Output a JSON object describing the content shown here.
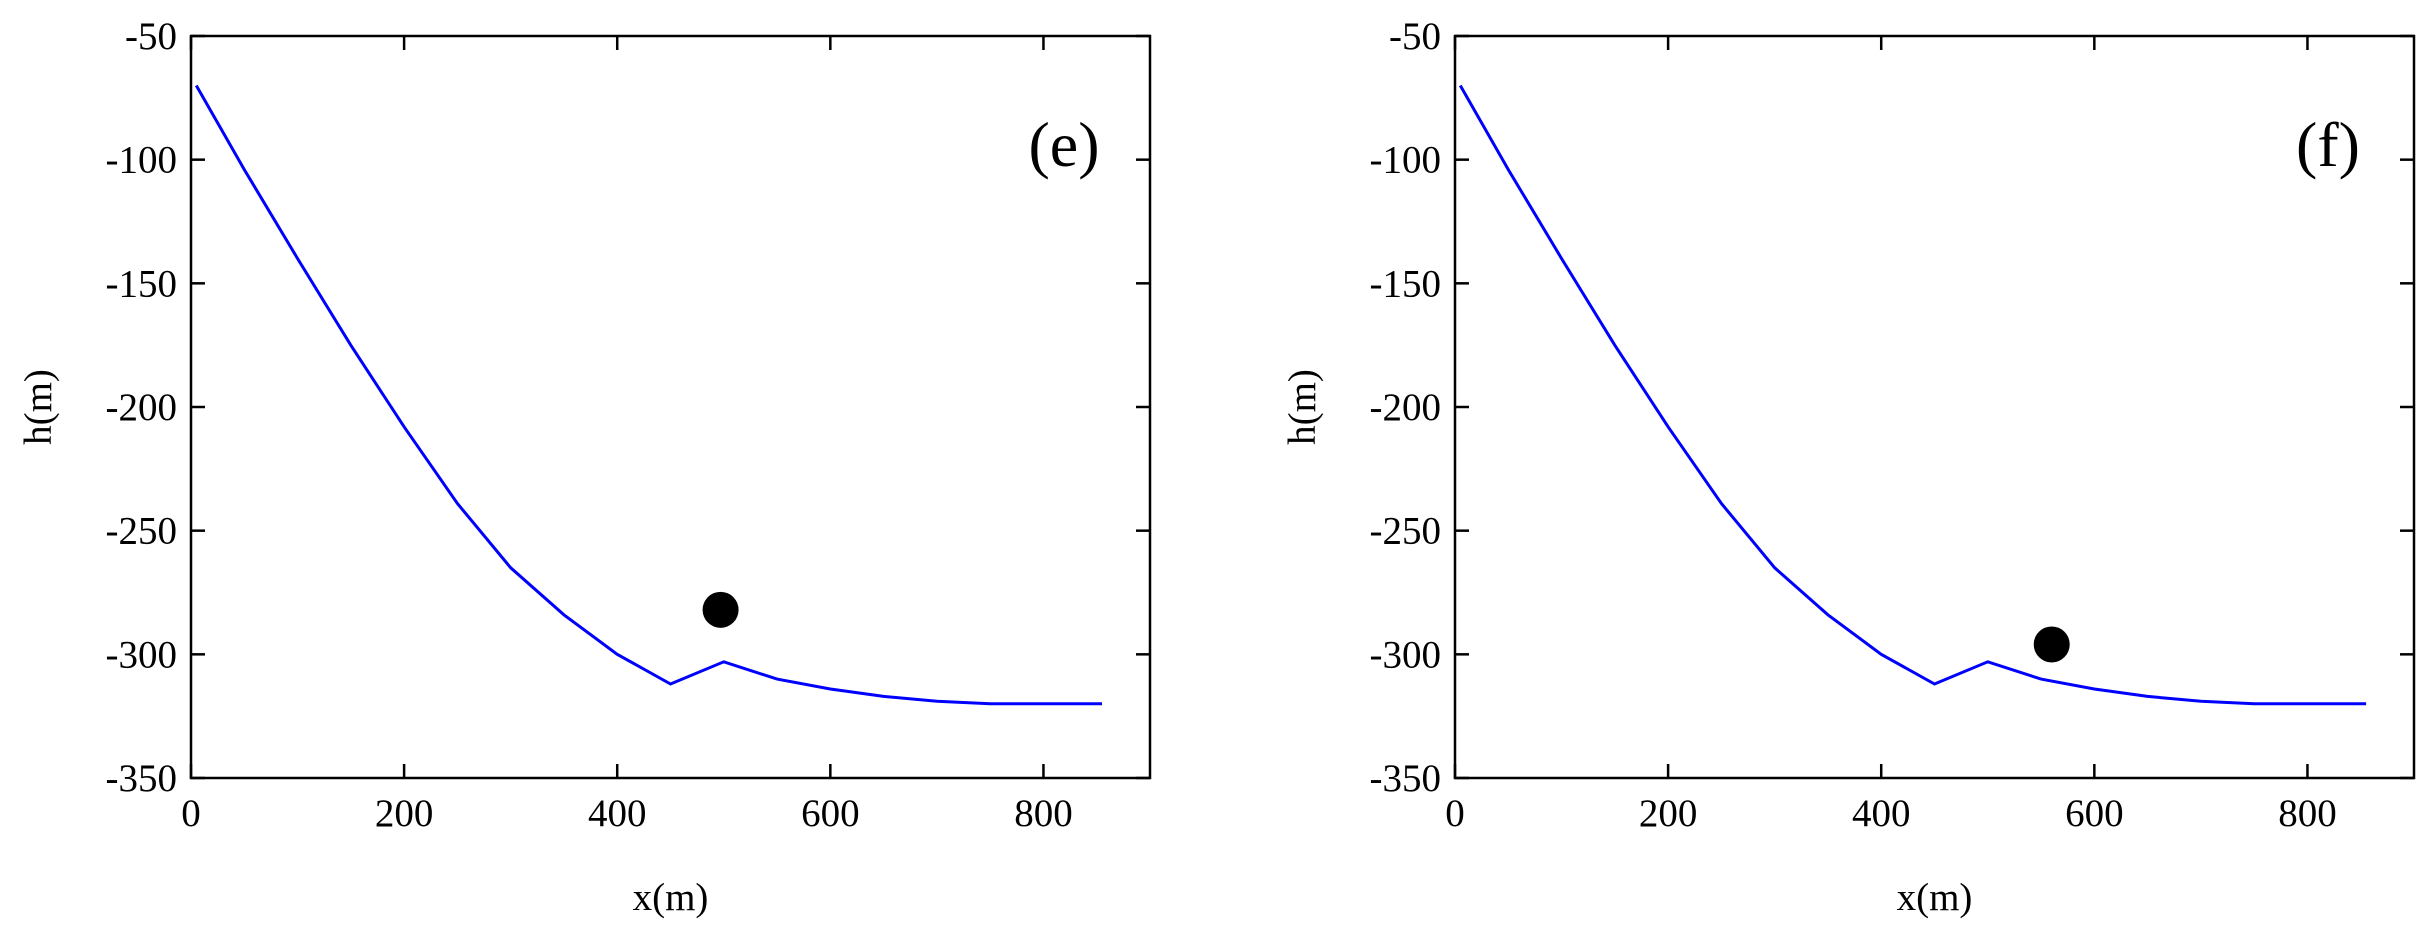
{
  "chart_data": [
    {
      "type": "line",
      "panel_label": "(e)",
      "xlabel": "x(m)",
      "ylabel": "h(m)",
      "xlim": [
        0,
        900
      ],
      "ylim": [
        -350,
        -50
      ],
      "xticks": [
        0,
        200,
        400,
        600,
        800
      ],
      "yticks": [
        -50,
        -100,
        -150,
        -200,
        -250,
        -300,
        -350
      ],
      "series": [
        {
          "color": "#0000ff",
          "x": [
            5,
            50,
            100,
            150,
            200,
            250,
            300,
            350,
            400,
            450,
            500,
            550,
            600,
            650,
            700,
            750,
            800,
            855
          ],
          "y": [
            -70,
            -104,
            -140,
            -175,
            -208,
            -239,
            -265,
            -284,
            -300,
            -312,
            -303,
            -310,
            -314,
            -317,
            -319,
            -320,
            -320,
            -320
          ]
        }
      ],
      "marker": {
        "x": 497,
        "y": -282,
        "color": "#000000"
      },
      "grid": false
    },
    {
      "type": "line",
      "panel_label": "(f)",
      "xlabel": "x(m)",
      "ylabel": "h(m)",
      "xlim": [
        0,
        900
      ],
      "ylim": [
        -350,
        -50
      ],
      "xticks": [
        0,
        200,
        400,
        600,
        800
      ],
      "yticks": [
        -50,
        -100,
        -150,
        -200,
        -250,
        -300,
        -350
      ],
      "series": [
        {
          "color": "#0000ff",
          "x": [
            5,
            50,
            100,
            150,
            200,
            250,
            300,
            350,
            400,
            450,
            500,
            550,
            600,
            650,
            700,
            750,
            800,
            855
          ],
          "y": [
            -70,
            -104,
            -140,
            -175,
            -208,
            -239,
            -265,
            -284,
            -300,
            -312,
            -303,
            -310,
            -314,
            -317,
            -319,
            -320,
            -320,
            -320
          ]
        }
      ],
      "marker": {
        "x": 560,
        "y": -296,
        "color": "#000000"
      },
      "grid": false
    }
  ]
}
